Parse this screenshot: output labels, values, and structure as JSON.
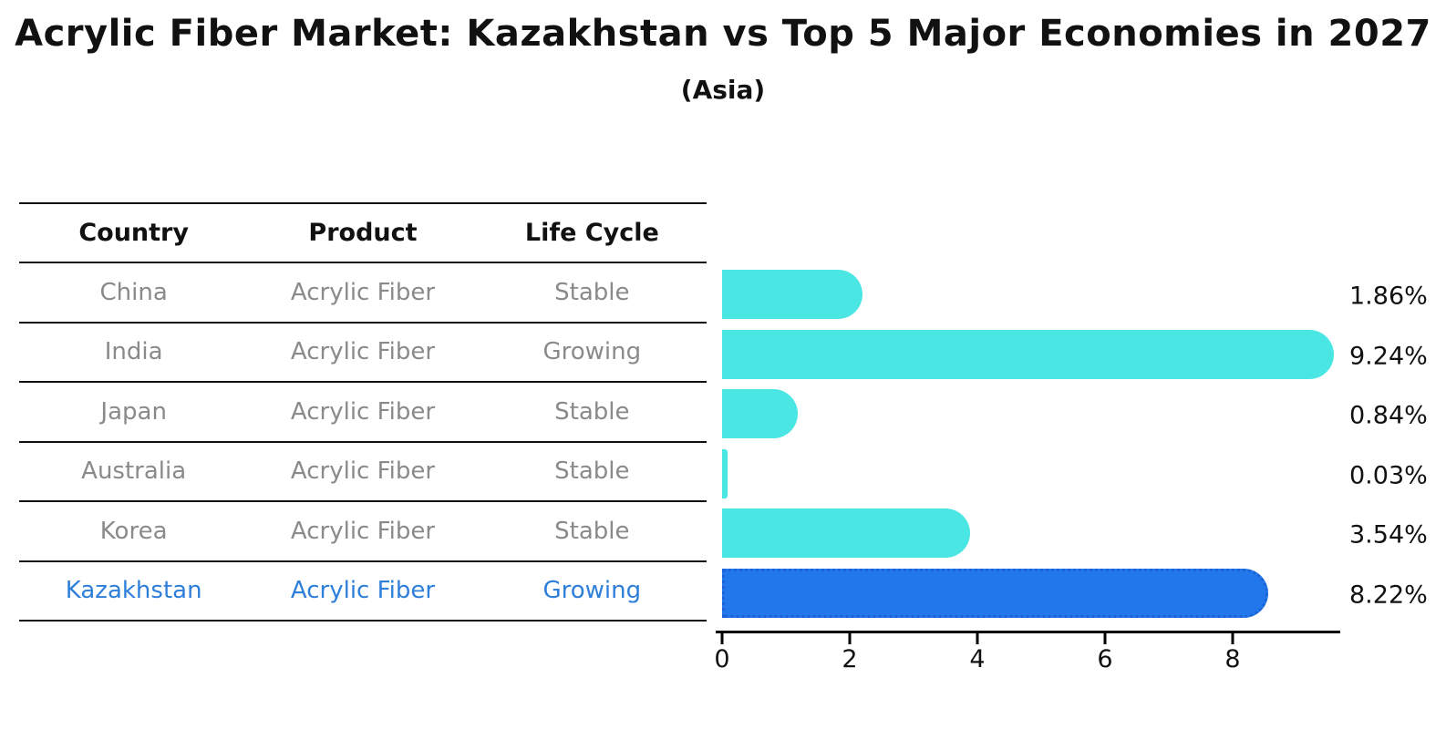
{
  "title": "Acrylic Fiber Market: Kazakhstan vs Top 5 Major Economies in 2027",
  "subtitle": "(Asia)",
  "table": {
    "headers": [
      "Country",
      "Product",
      "Life Cycle"
    ],
    "rows": [
      {
        "country": "China",
        "product": "Acrylic Fiber",
        "life_cycle": "Stable",
        "highlight": false
      },
      {
        "country": "India",
        "product": "Acrylic Fiber",
        "life_cycle": "Growing",
        "highlight": false
      },
      {
        "country": "Japan",
        "product": "Acrylic Fiber",
        "life_cycle": "Stable",
        "highlight": false
      },
      {
        "country": "Australia",
        "product": "Acrylic Fiber",
        "life_cycle": "Stable",
        "highlight": false
      },
      {
        "country": "Korea",
        "product": "Acrylic Fiber",
        "life_cycle": "Stable",
        "highlight": false
      },
      {
        "country": "Kazakhstan",
        "product": "Acrylic Fiber",
        "life_cycle": "Growing",
        "highlight": true
      }
    ]
  },
  "chart_data": {
    "type": "bar",
    "orientation": "horizontal",
    "title": "Acrylic Fiber Market: Kazakhstan vs Top 5 Major Economies in 2027",
    "subtitle": "(Asia)",
    "categories": [
      "China",
      "India",
      "Japan",
      "Australia",
      "Korea",
      "Kazakhstan"
    ],
    "values": [
      1.86,
      9.24,
      0.84,
      0.03,
      3.54,
      8.22
    ],
    "value_labels": [
      "1.86%",
      "9.24%",
      "0.84%",
      "0.03%",
      "3.54%",
      "8.22%"
    ],
    "highlight_index": 5,
    "xticks": [
      0,
      2,
      4,
      6,
      8
    ],
    "xlim": [
      0,
      9.7
    ],
    "grid": false,
    "legend": false,
    "xlabel": "",
    "ylabel": ""
  },
  "colors": {
    "bar_default": "#4AE6E3",
    "bar_highlight": "#2278EA",
    "bar_highlight_border": "#1B63D6",
    "highlight_text": "#2E7FD9",
    "row_text": "#8A8A8A",
    "header_text": "#111111",
    "axis": "#000000"
  }
}
